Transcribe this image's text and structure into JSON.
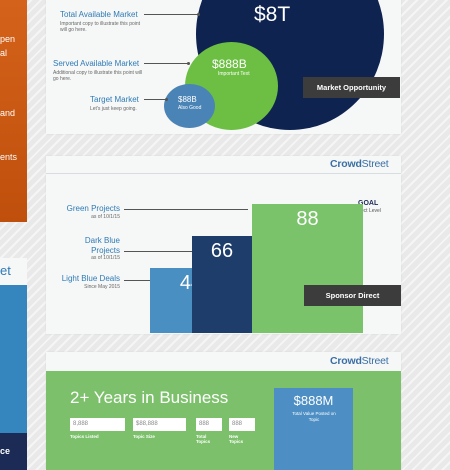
{
  "left_panels": {
    "orange_lines": [
      "pen",
      "al",
      "and",
      "ents"
    ],
    "blue_title": "et",
    "blue_footer": "ce",
    "colors": {
      "orange": "#d65e16",
      "blue": "#2e7bb6",
      "navy": "#1b2b55"
    }
  },
  "market_card": {
    "items": [
      {
        "label": "Total Available Market",
        "sub": "Important copy to illustrate this point will go here.",
        "bubble_value": "$8T",
        "bubble_sub": ""
      },
      {
        "label": "Served Available Market",
        "sub": "Additional copy to illustrate this point will go here.",
        "bubble_value": "$888B",
        "bubble_sub": "Important Text"
      },
      {
        "label": "Target Market",
        "sub": "Let's just keep going.",
        "bubble_value": "$88B",
        "bubble_sub": "Also Good"
      }
    ],
    "tag": "Market Opportunity",
    "colors": {
      "tam": "#0f2351",
      "sam": "#6cbf43",
      "tm": "#4a84b6"
    }
  },
  "projects_card": {
    "brand_bold": "Crowd",
    "brand_rest": "Street",
    "goal_label": "GOAL",
    "goal_sub": "Project Level",
    "labels": [
      {
        "title": "Green Projects",
        "sub": "as of 10/1/15"
      },
      {
        "title": "Dark Blue Projects",
        "sub": "as of 10/1/15"
      },
      {
        "title": "Light Blue Deals",
        "sub": "Since May 2015"
      }
    ],
    "tag": "Sponsor Direct"
  },
  "chart_data": {
    "type": "bar",
    "categories": [
      "Light Blue Deals",
      "Dark Blue Projects",
      "Green Projects"
    ],
    "values": [
      44,
      66,
      88
    ],
    "colors": [
      "#4a8fc1",
      "#1f3d6b",
      "#7ac36a"
    ]
  },
  "business_card": {
    "brand_bold": "Crowd",
    "brand_rest": "Street",
    "title": "2+ Years in Business",
    "fields": [
      {
        "value": "8,888",
        "label": "Topics Listed"
      },
      {
        "value": "$88,888",
        "label": "Topic Size"
      },
      {
        "value": "888",
        "label": "Total Topics"
      },
      {
        "value": "888",
        "label": "New Topics"
      }
    ],
    "highlight_value": "$888M",
    "highlight_label": "Total Value Posted on Topic",
    "colors": {
      "green": "#7cc06b",
      "blue": "#4d8fc4"
    }
  }
}
